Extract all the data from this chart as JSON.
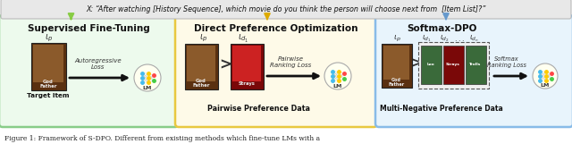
{
  "title_text": "X: “After watching [History Sequence], which movie do you think the person will choose next from  [Item List]?”",
  "caption_text": "Figure 1: Framework of S-DPO. Different from existing methods which fine-tune LMs with a",
  "background_color": "#ffffff",
  "title_bg_color": "#e8e8e8",
  "title_border": "#bbbbbb",
  "box1_bg": "#edfaed",
  "box1_border": "#88cc88",
  "box1_title": "Supervised Fine-Tuning",
  "box2_bg": "#fefae8",
  "box2_border": "#e8c840",
  "box2_title": "Direct Preference Optimization",
  "box3_bg": "#e8f4fc",
  "box3_border": "#88bbe8",
  "box3_title": "Softmax-DPO",
  "arrow_color_g": "#88cc44",
  "arrow_color_y": "#ddaa00",
  "arrow_color_b": "#6699cc",
  "lm_bg": "#fffff0",
  "node_left": "#44bbee",
  "node_mid": "#ffcc00",
  "node_right_r": "#ff4444",
  "node_right_g": "#44cc44",
  "node_out": "#ff8800",
  "fig_width": 6.4,
  "fig_height": 1.61,
  "dpi": 100
}
